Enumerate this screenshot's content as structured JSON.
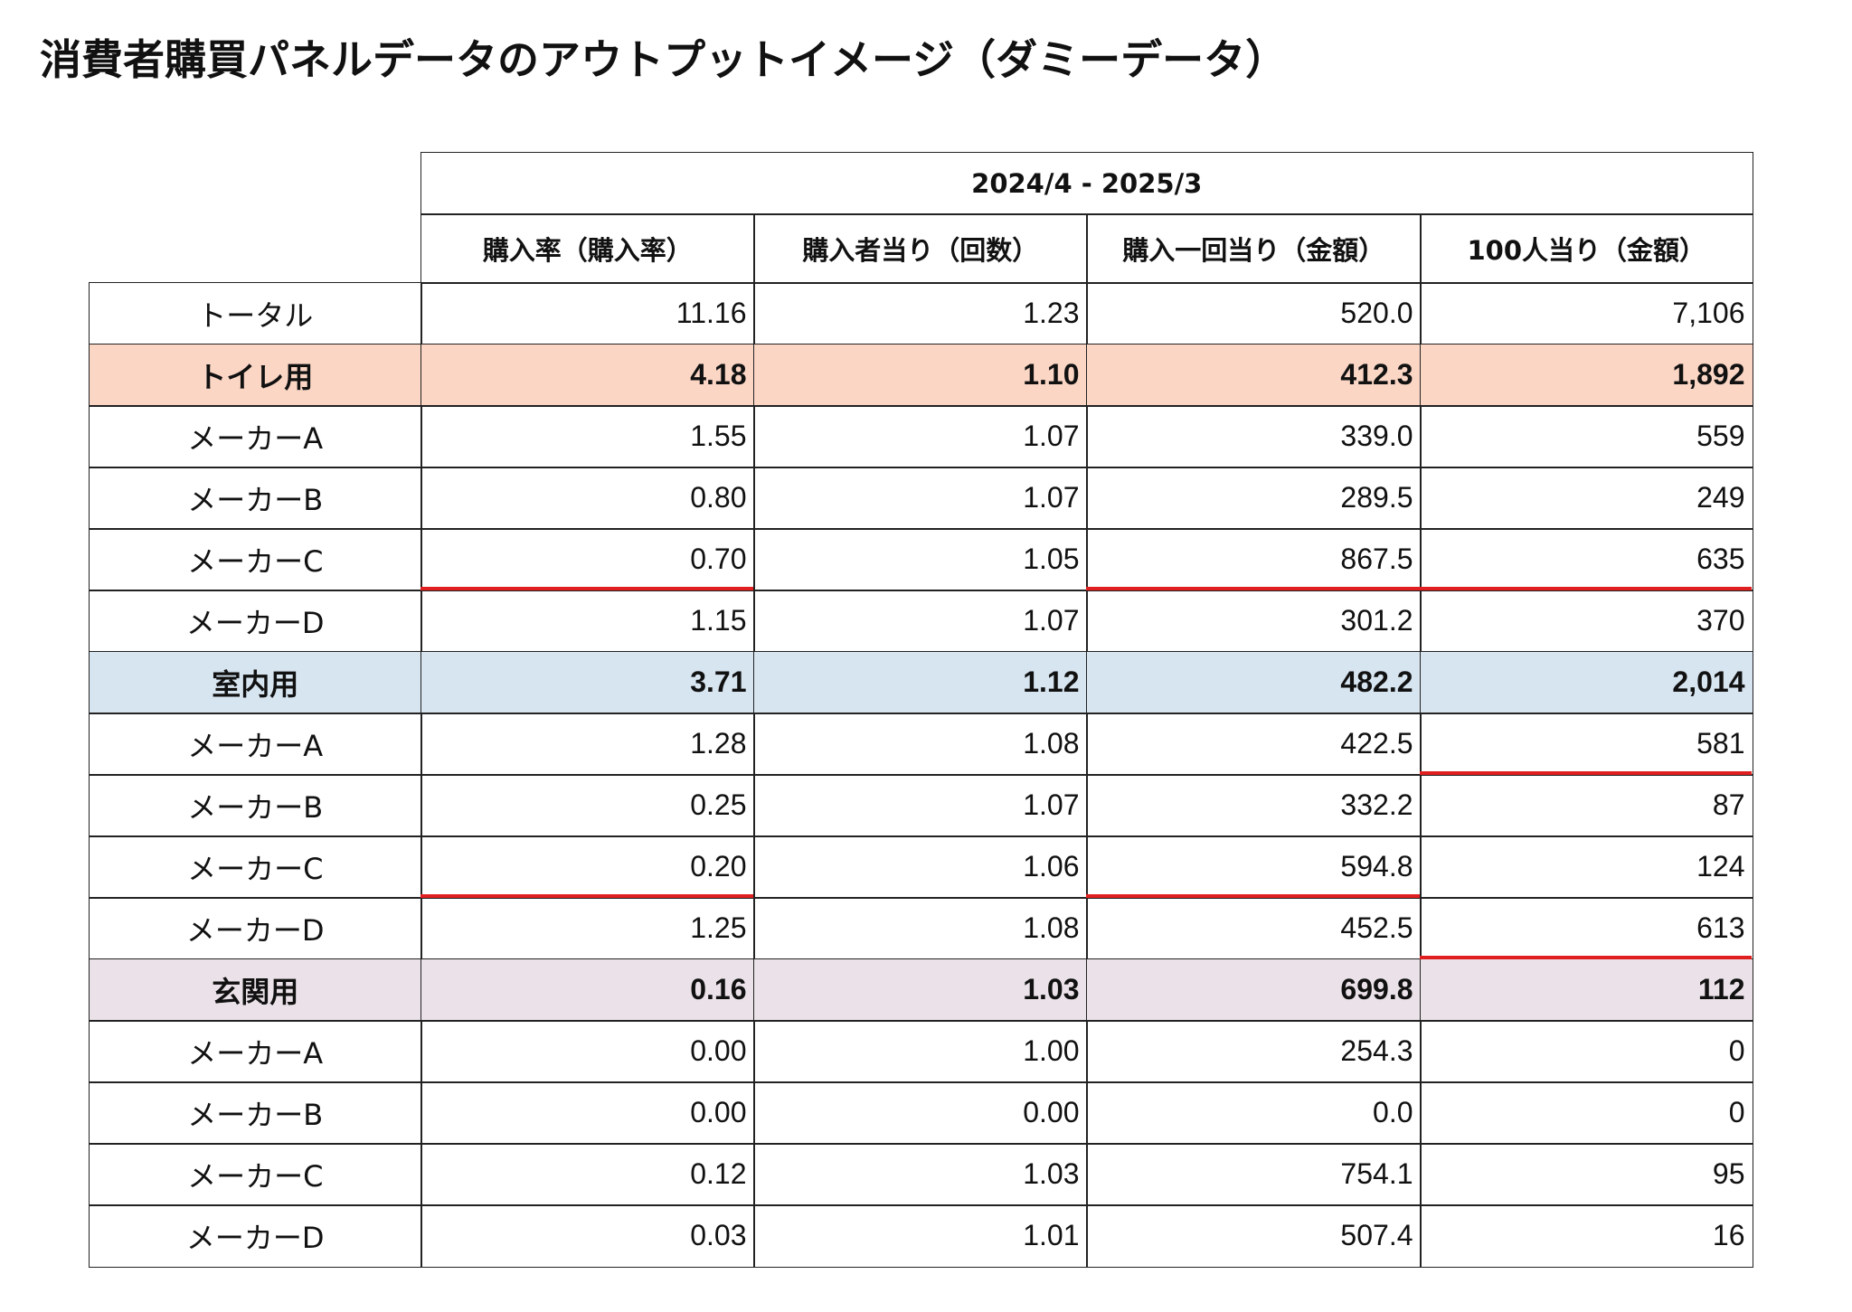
{
  "header": {
    "title": "消費者購買パネルデータのアウトプットイメージ（ダミーデータ）"
  },
  "table": {
    "period": "2024/4 - 2025/3",
    "columns": [
      "購入率（購入率）",
      "購入者当り（回数）",
      "購入一回当り（金額）",
      "100人当り（金額）"
    ],
    "rows": [
      {
        "label": "トータル",
        "values": [
          "11.16",
          "1.23",
          "520.0",
          "7,106"
        ]
      },
      {
        "label": "トイレ用",
        "values": [
          "4.18",
          "1.10",
          "412.3",
          "1,892"
        ]
      },
      {
        "label": "メーカーA",
        "values": [
          "1.55",
          "1.07",
          "339.0",
          "559"
        ]
      },
      {
        "label": "メーカーB",
        "values": [
          "0.80",
          "1.07",
          "289.5",
          "249"
        ]
      },
      {
        "label": "メーカーC",
        "values": [
          "0.70",
          "1.05",
          "867.5",
          "635"
        ]
      },
      {
        "label": "メーカーD",
        "values": [
          "1.15",
          "1.07",
          "301.2",
          "370"
        ]
      },
      {
        "label": "室内用",
        "values": [
          "3.71",
          "1.12",
          "482.2",
          "2,014"
        ]
      },
      {
        "label": "メーカーA",
        "values": [
          "1.28",
          "1.08",
          "422.5",
          "581"
        ]
      },
      {
        "label": "メーカーB",
        "values": [
          "0.25",
          "1.07",
          "332.2",
          "87"
        ]
      },
      {
        "label": "メーカーC",
        "values": [
          "0.20",
          "1.06",
          "594.8",
          "124"
        ]
      },
      {
        "label": "メーカーD",
        "values": [
          "1.25",
          "1.08",
          "452.5",
          "613"
        ]
      },
      {
        "label": "玄関用",
        "values": [
          "0.16",
          "1.03",
          "699.8",
          "112"
        ]
      },
      {
        "label": "メーカーA",
        "values": [
          "0.00",
          "1.00",
          "254.3",
          "0"
        ]
      },
      {
        "label": "メーカーB",
        "values": [
          "0.00",
          "0.00",
          "0.0",
          "0"
        ]
      },
      {
        "label": "メーカーC",
        "values": [
          "0.12",
          "1.03",
          "754.1",
          "95"
        ]
      },
      {
        "label": "メーカーD",
        "values": [
          "0.03",
          "1.01",
          "507.4",
          "16"
        ]
      }
    ]
  }
}
